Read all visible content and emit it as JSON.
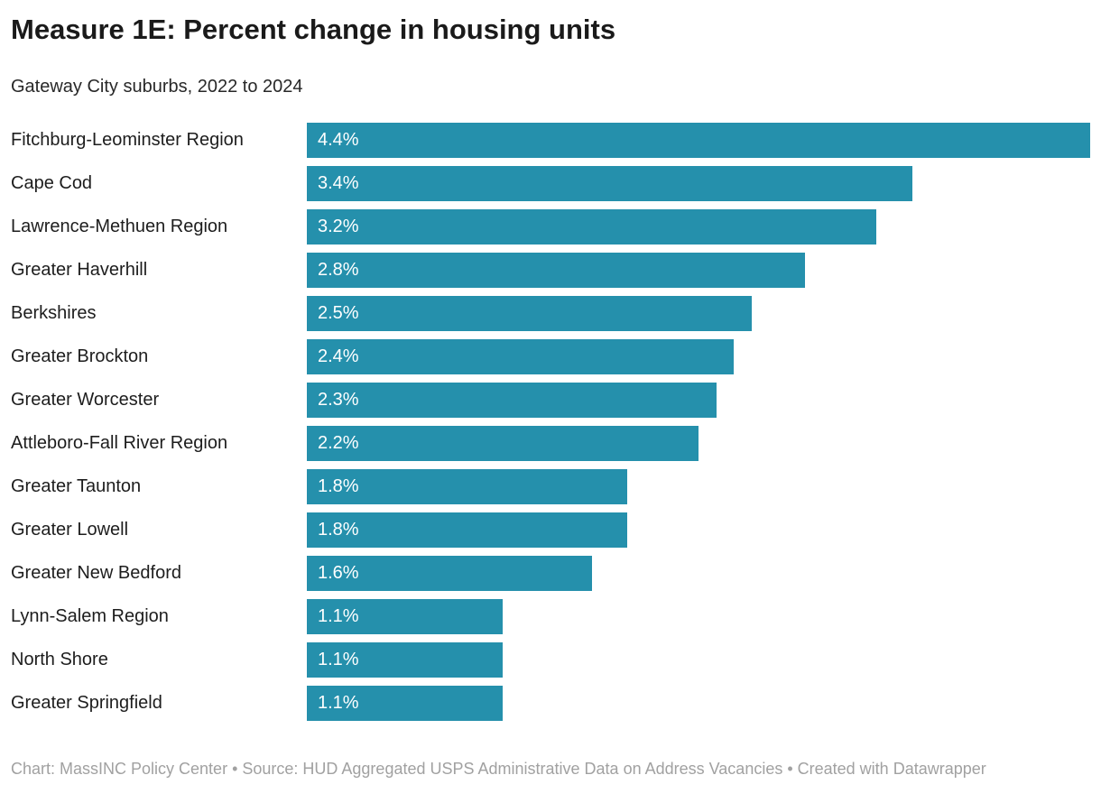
{
  "header": {
    "title": "Measure 1E: Percent change in housing units",
    "subtitle": "Gateway City suburbs, 2022 to 2024"
  },
  "chart_data": {
    "type": "bar",
    "orientation": "horizontal",
    "title": "Measure 1E: Percent change in housing units",
    "subtitle": "Gateway City suburbs, 2022 to 2024",
    "categories": [
      "Fitchburg-Leominster Region",
      "Cape Cod",
      "Lawrence-Methuen Region",
      "Greater Haverhill",
      "Berkshires",
      "Greater Brockton",
      "Greater Worcester",
      "Attleboro-Fall River Region",
      "Greater Taunton",
      "Greater Lowell",
      "Greater New Bedford",
      "Lynn-Salem Region",
      "North Shore",
      "Greater Springfield"
    ],
    "values": [
      4.4,
      3.4,
      3.2,
      2.8,
      2.5,
      2.4,
      2.3,
      2.2,
      1.8,
      1.8,
      1.6,
      1.1,
      1.1,
      1.1
    ],
    "value_labels": [
      "4.4%",
      "3.4%",
      "3.2%",
      "2.8%",
      "2.5%",
      "2.4%",
      "2.3%",
      "2.2%",
      "1.8%",
      "1.8%",
      "1.6%",
      "1.1%",
      "1.1%",
      "1.1%"
    ],
    "xlim": [
      0,
      4.4
    ],
    "grid": false,
    "legend": "none",
    "bar_color": "#2590ac",
    "value_label_color": "#ffffff",
    "value_label_position": "inside-start"
  },
  "footer": {
    "text": "Chart: MassINC Policy Center • Source: HUD Aggregated USPS Administrative Data on Address Vacancies • Created with Datawrapper"
  }
}
